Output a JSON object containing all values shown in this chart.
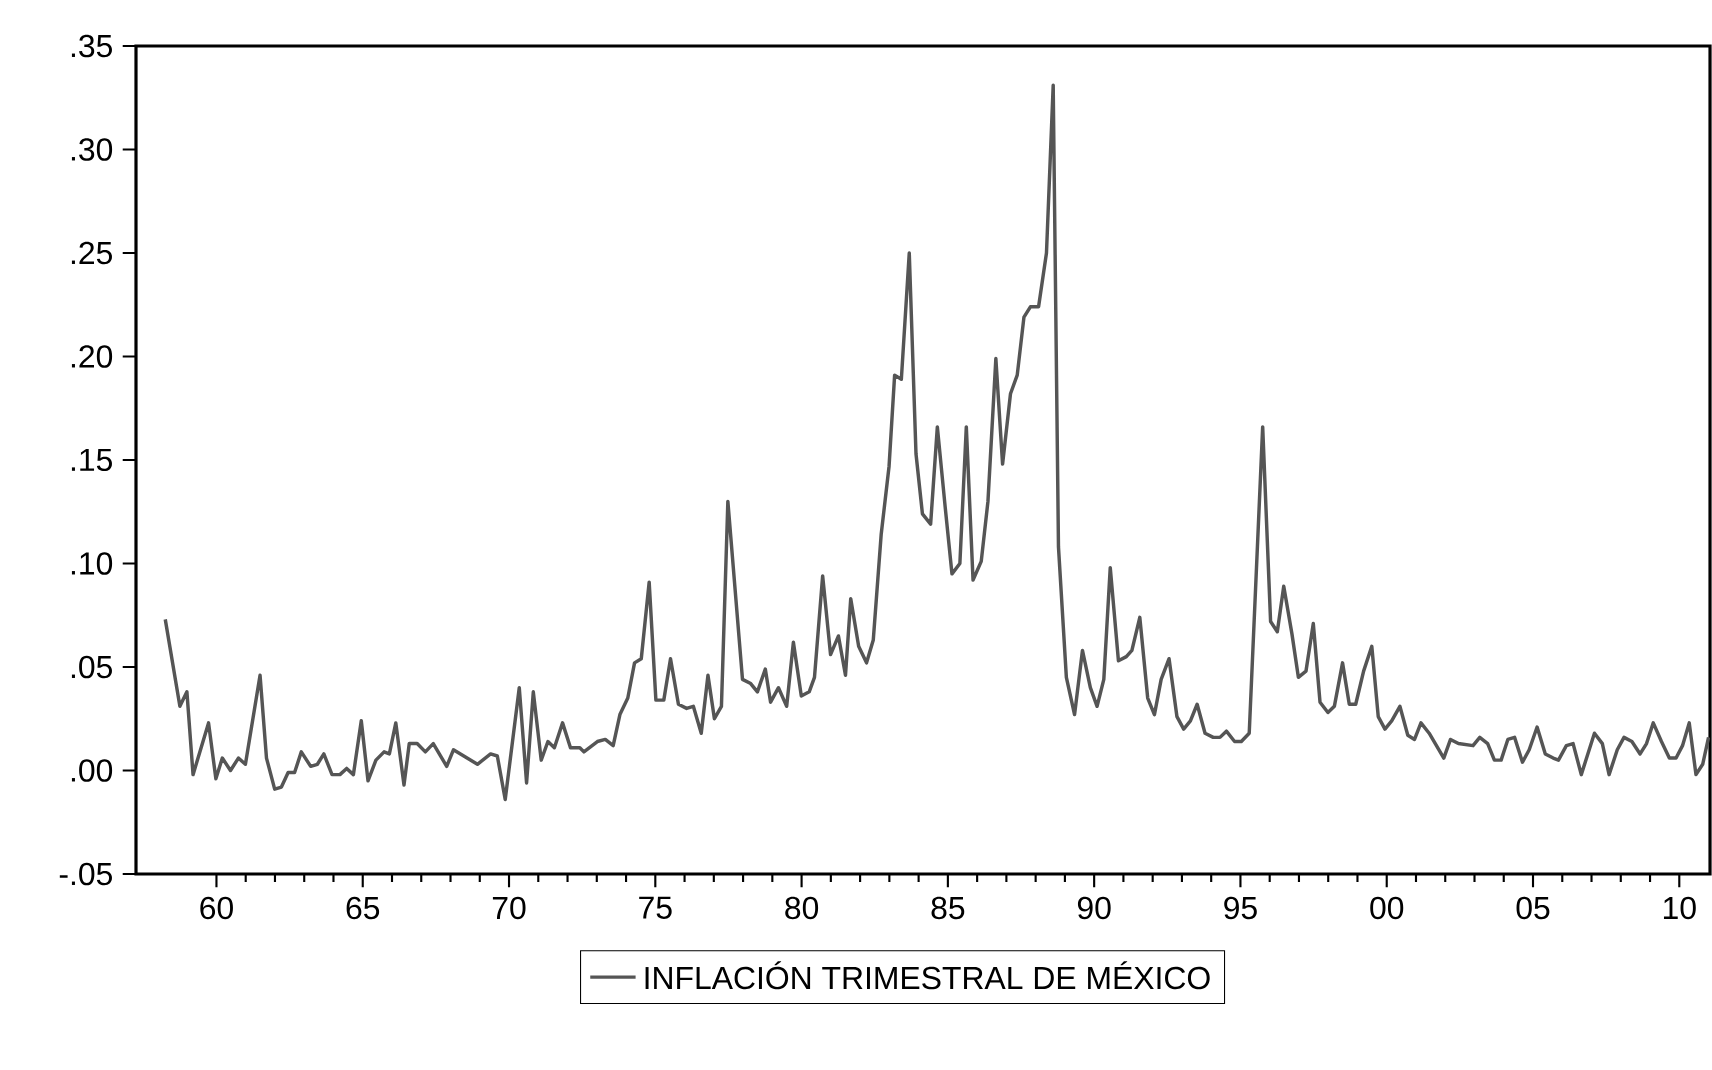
{
  "chart_data": {
    "type": "line",
    "legend": "bottom",
    "grid": false,
    "marker": "none",
    "line_style": "solid",
    "xlim": [
      1957.25,
      2011.05
    ],
    "xticks": [
      {
        "value": 1960,
        "label": "60"
      },
      {
        "value": 1965,
        "label": "65"
      },
      {
        "value": 1970,
        "label": "70"
      },
      {
        "value": 1975,
        "label": "75"
      },
      {
        "value": 1980,
        "label": "80"
      },
      {
        "value": 1985,
        "label": "85"
      },
      {
        "value": 1990,
        "label": "90"
      },
      {
        "value": 1995,
        "label": "95"
      },
      {
        "value": 2000,
        "label": "00"
      },
      {
        "value": 2005,
        "label": "05"
      },
      {
        "value": 2010,
        "label": "10"
      }
    ],
    "ylim": [
      -0.05,
      0.35
    ],
    "yticks": [
      {
        "value": -0.05,
        "label": "-.05"
      },
      {
        "value": 0,
        "label": ".00"
      },
      {
        "value": 0.05,
        "label": ".05"
      },
      {
        "value": 0.1,
        "label": ".10"
      },
      {
        "value": 0.15,
        "label": ".15"
      },
      {
        "value": 0.2,
        "label": ".20"
      },
      {
        "value": 0.25,
        "label": ".25"
      },
      {
        "value": 0.3,
        "label": ".30"
      },
      {
        "value": 0.35,
        "label": ".35"
      }
    ],
    "x": [
      1958.25,
      1958.75,
      1958.99,
      1959.2,
      1959.73,
      1959.98,
      1960.2,
      1960.48,
      1960.75,
      1960.99,
      1961.49,
      1961.71,
      1961.99,
      1962.22,
      1962.45,
      1962.67,
      1962.9,
      1963.22,
      1963.45,
      1963.67,
      1963.95,
      1964.22,
      1964.45,
      1964.68,
      1964.95,
      1965.18,
      1965.45,
      1965.73,
      1965.91,
      1966.13,
      1966.41,
      1966.59,
      1966.86,
      1967.14,
      1967.41,
      1967.87,
      1968.1,
      1968.92,
      1969.37,
      1969.6,
      1969.87,
      1970.35,
      1970.6,
      1970.83,
      1971.1,
      1971.33,
      1971.55,
      1971.83,
      1972.1,
      1972.42,
      1972.56,
      1973.02,
      1973.29,
      1973.56,
      1973.79,
      1974.06,
      1974.29,
      1974.52,
      1974.79,
      1975.02,
      1975.29,
      1975.52,
      1975.79,
      1976.07,
      1976.3,
      1976.57,
      1976.8,
      1977.02,
      1977.26,
      1977.48,
      1977.98,
      1978.26,
      1978.49,
      1978.76,
      1978.94,
      1979.21,
      1979.49,
      1979.72,
      1979.99,
      1980.26,
      1980.44,
      1980.72,
      1980.99,
      1981.26,
      1981.5,
      1981.68,
      1981.95,
      1982.22,
      1982.45,
      1982.72,
      1982.99,
      1983.18,
      1983.41,
      1983.68,
      1983.91,
      1984.13,
      1984.41,
      1984.64,
      1984.91,
      1985.14,
      1985.41,
      1985.63,
      1985.86,
      1986.14,
      1986.37,
      1986.64,
      1986.87,
      1987.14,
      1987.37,
      1987.6,
      1987.82,
      1988.1,
      1988.37,
      1988.6,
      1988.78,
      1989.05,
      1989.33,
      1989.6,
      1989.87,
      1990.1,
      1990.33,
      1990.55,
      1990.83,
      1991.1,
      1991.29,
      1991.56,
      1991.83,
      1992.06,
      1992.29,
      1992.56,
      1992.83,
      1993.06,
      1993.29,
      1993.52,
      1993.79,
      1994.07,
      1994.3,
      1994.52,
      1994.8,
      1995.03,
      1995.3,
      1995.76,
      1996.03,
      1996.26,
      1996.48,
      1996.76,
      1996.98,
      1997.24,
      1997.49,
      1997.72,
      1997.99,
      1998.21,
      1998.49,
      1998.72,
      1998.94,
      1999.21,
      1999.49,
      1999.71,
      1999.94,
      2000.17,
      2000.45,
      2000.72,
      2000.95,
      2001.17,
      2001.45,
      2001.95,
      2002.18,
      2002.45,
      2002.95,
      2003.18,
      2003.45,
      2003.68,
      2003.91,
      2004.14,
      2004.37,
      2004.64,
      2004.87,
      2005.14,
      2005.42,
      2005.69,
      2005.87,
      2006.14,
      2006.37,
      2006.65,
      2007.1,
      2007.37,
      2007.6,
      2007.88,
      2008.11,
      2008.38,
      2008.66,
      2008.88,
      2009.11,
      2009.39,
      2009.66,
      2009.89,
      2010.11,
      2010.34,
      2010.57,
      2010.8,
      2011.0
    ],
    "series": [
      {
        "name": "INFLACIÓN TRIMESTRAL DE MÉXICO",
        "color": "#555555",
        "values": [
          0.073,
          0.031,
          0.038,
          -0.002,
          0.023,
          -0.004,
          0.006,
          0.0,
          0.006,
          0.003,
          0.046,
          0.006,
          -0.009,
          -0.008,
          -0.001,
          -0.001,
          0.009,
          0.002,
          0.003,
          0.008,
          -0.002,
          -0.002,
          0.001,
          -0.002,
          0.024,
          -0.005,
          0.005,
          0.009,
          0.008,
          0.023,
          -0.007,
          0.013,
          0.013,
          0.009,
          0.013,
          0.002,
          0.01,
          0.003,
          0.008,
          0.007,
          -0.014,
          0.04,
          -0.006,
          0.038,
          0.005,
          0.014,
          0.011,
          0.023,
          0.011,
          0.011,
          0.009,
          0.014,
          0.015,
          0.012,
          0.027,
          0.035,
          0.052,
          0.054,
          0.091,
          0.034,
          0.034,
          0.054,
          0.032,
          0.03,
          0.031,
          0.018,
          0.046,
          0.025,
          0.031,
          0.13,
          0.044,
          0.042,
          0.038,
          0.049,
          0.033,
          0.04,
          0.031,
          0.062,
          0.036,
          0.038,
          0.045,
          0.094,
          0.056,
          0.065,
          0.046,
          0.083,
          0.06,
          0.052,
          0.063,
          0.114,
          0.147,
          0.191,
          0.189,
          0.25,
          0.153,
          0.124,
          0.119,
          0.166,
          0.127,
          0.095,
          0.1,
          0.166,
          0.092,
          0.101,
          0.13,
          0.199,
          0.148,
          0.182,
          0.191,
          0.219,
          0.224,
          0.224,
          0.25,
          0.331,
          0.108,
          0.045,
          0.027,
          0.058,
          0.04,
          0.031,
          0.044,
          0.098,
          0.053,
          0.055,
          0.058,
          0.074,
          0.035,
          0.027,
          0.044,
          0.054,
          0.026,
          0.02,
          0.024,
          0.032,
          0.018,
          0.016,
          0.016,
          0.019,
          0.014,
          0.014,
          0.018,
          0.166,
          0.072,
          0.067,
          0.089,
          0.066,
          0.045,
          0.048,
          0.071,
          0.033,
          0.028,
          0.031,
          0.052,
          0.032,
          0.032,
          0.048,
          0.06,
          0.026,
          0.02,
          0.024,
          0.031,
          0.017,
          0.015,
          0.023,
          0.018,
          0.006,
          0.015,
          0.013,
          0.012,
          0.016,
          0.013,
          0.005,
          0.005,
          0.015,
          0.016,
          0.004,
          0.01,
          0.021,
          0.008,
          0.006,
          0.005,
          0.012,
          0.013,
          -0.002,
          0.018,
          0.013,
          -0.002,
          0.01,
          0.016,
          0.014,
          0.008,
          0.013,
          0.023,
          0.014,
          0.006,
          0.006,
          0.012,
          0.023,
          -0.002,
          0.003,
          0.016
        ]
      }
    ]
  }
}
